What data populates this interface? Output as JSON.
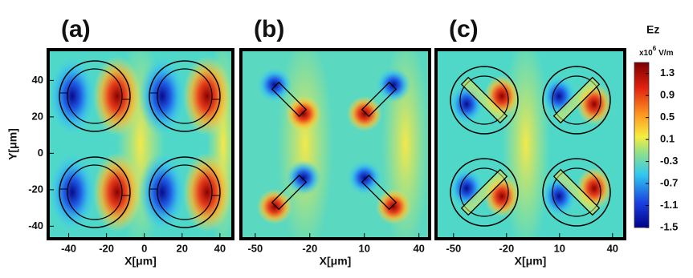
{
  "chart_data": [
    {
      "type": "heatmap",
      "label": "(a)",
      "xlabel": "X[μm]",
      "ylabel": "Y[μm]",
      "xlim": [
        -50,
        46
      ],
      "ylim": [
        -46,
        56
      ],
      "xticks": [
        -40,
        -20,
        0,
        20,
        40
      ],
      "yticks": [
        40,
        20,
        0,
        -20,
        -40
      ]
    },
    {
      "type": "heatmap",
      "label": "(b)",
      "xlabel": "X[μm]",
      "xlim": [
        -57,
        45
      ],
      "xticks": [
        -50,
        -20,
        10,
        40
      ]
    },
    {
      "type": "heatmap",
      "label": "(c)",
      "xlabel": "X[μm]",
      "xlim": [
        -59,
        46
      ],
      "xticks": [
        -50,
        -20,
        10,
        40
      ]
    }
  ],
  "colorbar": {
    "title": "Ez",
    "unit_scale": "x10",
    "unit_exponent": "6",
    "unit": "V/m",
    "lim": [
      -1.5,
      1.5
    ],
    "ticks": [
      1.3,
      0.9,
      0.5,
      0.1,
      -0.3,
      -0.7,
      -1.1,
      -1.5
    ]
  }
}
